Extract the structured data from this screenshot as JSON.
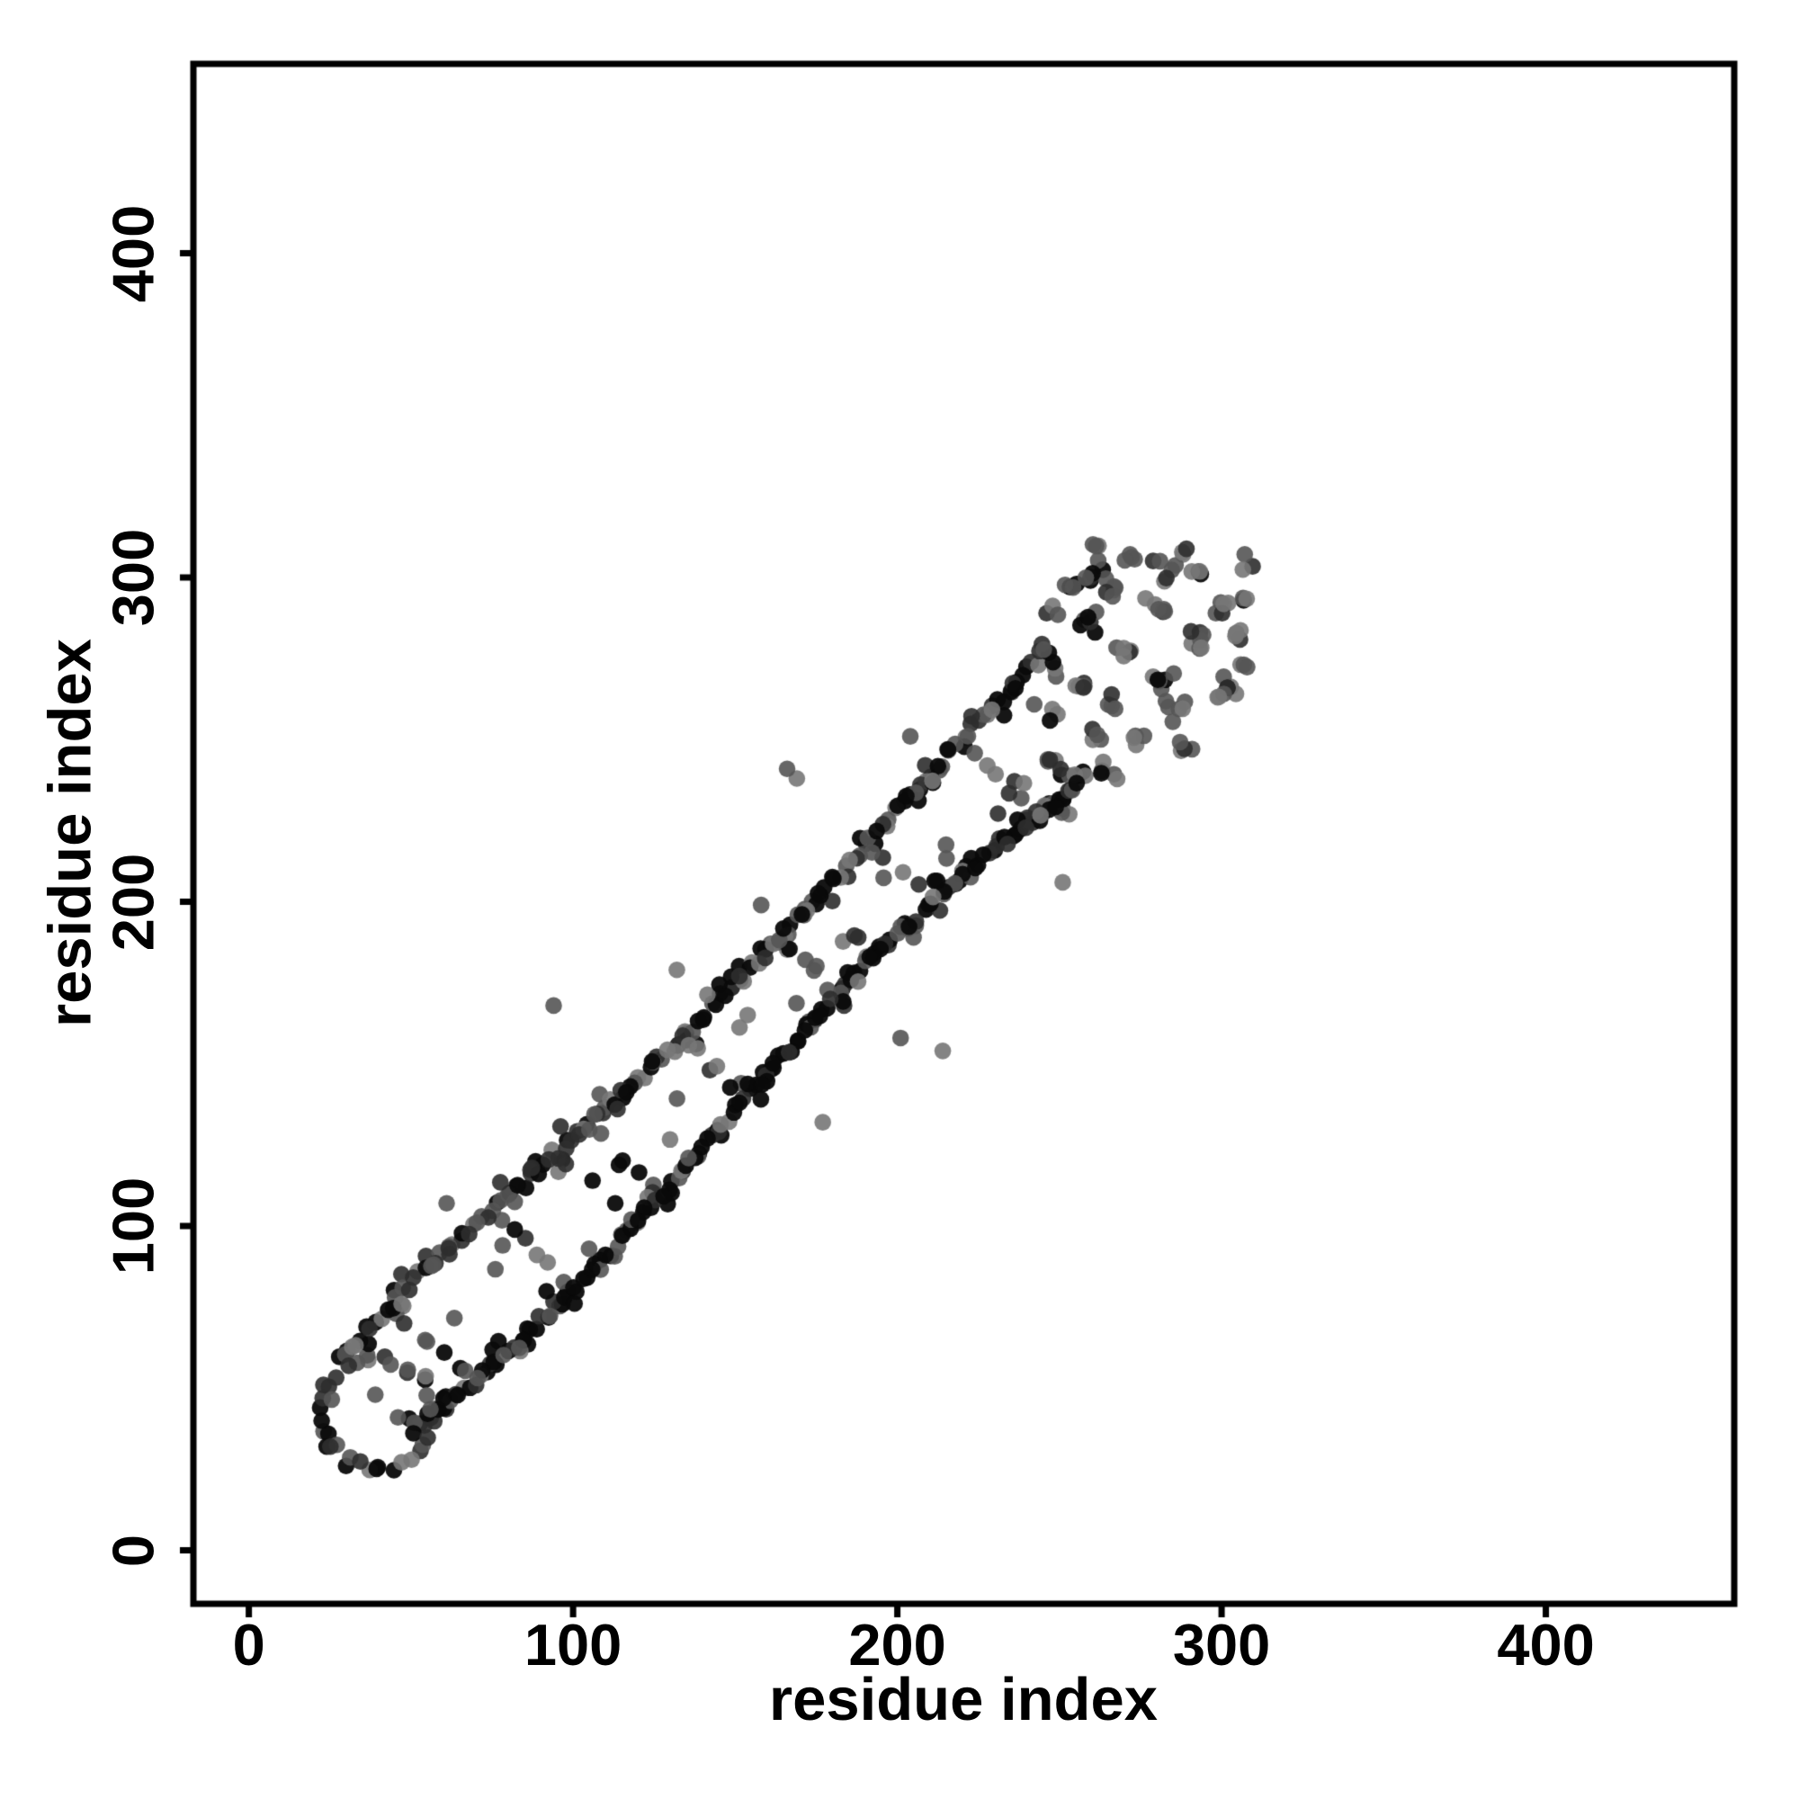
{
  "page": {
    "background": "#ffffff"
  },
  "chart_data": {
    "type": "scatter",
    "title": "",
    "xlabel": "residue index",
    "ylabel": "residue index",
    "xlim": [
      -17.1,
      458.1
    ],
    "ylim": [
      -16.5,
      458.4
    ],
    "x_ticks": [
      0,
      100,
      200,
      300,
      400
    ],
    "y_ticks": [
      0,
      100,
      200,
      300,
      400
    ],
    "grid": false,
    "legend_position": "none",
    "axis_color": "#000000",
    "background_color": "#ffffff",
    "point_radius_px": 9.3,
    "shades": [
      "#0a0a0a",
      "#2e2e2e",
      "#555555",
      "#777777"
    ],
    "shade_alphas": [
      0.95,
      0.9,
      0.9,
      0.9
    ],
    "pattern": {
      "seed": 20240516,
      "chains": [
        {
          "i_start": 50,
          "i_end": 259,
          "step": 1.3,
          "offset_base": -15,
          "offset_amp": 5,
          "offset_freq": 0.035,
          "offset_phase": 1.2,
          "jitter": 2.4,
          "double_p": 0.25,
          "double_spread": 5,
          "shade_weights": [
            0.55,
            0.22,
            0.13,
            0.1
          ]
        },
        {
          "i_start": 28,
          "i_end": 246,
          "step": 1.4,
          "offset_base": 28,
          "offset_amp": 3.5,
          "offset_freq": 0.03,
          "offset_phase": 0.4,
          "jitter": 2.6,
          "double_p": 0.3,
          "double_spread": 5,
          "shade_weights": [
            0.36,
            0.24,
            0.22,
            0.18
          ]
        }
      ],
      "rungs": {
        "centers_i": [
          57,
          86,
          115,
          144,
          173,
          202,
          231
        ],
        "center_offset": 6.5,
        "half_len": 10,
        "counts": [
          7,
          6,
          5,
          5,
          6,
          5,
          7
        ],
        "jitter": 4,
        "shade_weights": [
          0.1,
          0.2,
          0.42,
          0.28
        ]
      },
      "band_scatter": {
        "n": 22,
        "i_min": 55,
        "i_max": 250,
        "off_min": -8,
        "off_max": 22,
        "shade_weights": [
          0.08,
          0.18,
          0.44,
          0.3
        ]
      },
      "start_ring": {
        "cx": 40,
        "cy": 42,
        "r": 17,
        "n": 34,
        "r_jitter": 2.4,
        "shade_weights": [
          0.34,
          0.26,
          0.24,
          0.16
        ],
        "inner_points": [
          [
            39,
            48
          ],
          [
            46,
            41
          ]
        ]
      },
      "start_extras": [
        [
          24,
          32
        ],
        [
          30,
          26
        ],
        [
          22,
          44
        ],
        [
          23,
          51
        ]
      ],
      "blob_clusters": [
        [
          262,
          303,
          7,
          4
        ],
        [
          283,
          303,
          6,
          4
        ],
        [
          293,
          301,
          4,
          3
        ],
        [
          267,
          296,
          5,
          3
        ],
        [
          280,
          290,
          6,
          4
        ],
        [
          259,
          285,
          6,
          4
        ],
        [
          301,
          290,
          5,
          3
        ],
        [
          304,
          283,
          5,
          3
        ],
        [
          294,
          280,
          7,
          4
        ],
        [
          271,
          278,
          5,
          3
        ],
        [
          256,
          267,
          5,
          3
        ],
        [
          282,
          270,
          6,
          4
        ],
        [
          301,
          265,
          8,
          5
        ],
        [
          286,
          259,
          6,
          4
        ],
        [
          266,
          261,
          4,
          3
        ],
        [
          249,
          272,
          3,
          3
        ],
        [
          247,
          244,
          4,
          3
        ],
        [
          265,
          240,
          5,
          3
        ],
        [
          252,
          238,
          4,
          3
        ],
        [
          260,
          252,
          4,
          3
        ],
        [
          274,
          250,
          4,
          3
        ],
        [
          288,
          248,
          4,
          3
        ],
        [
          247,
          258,
          3,
          3
        ],
        [
          308,
          304,
          3,
          3
        ],
        [
          272,
          306,
          4,
          3
        ],
        [
          254,
          296,
          4,
          3
        ],
        [
          249,
          290,
          3,
          3
        ],
        [
          307,
          274,
          3,
          3
        ],
        [
          306,
          294,
          3,
          2
        ],
        [
          262,
          310,
          3,
          2
        ],
        [
          288,
          308,
          3,
          2
        ]
      ],
      "blob_shade_weights": [
        0.1,
        0.22,
        0.4,
        0.28
      ],
      "outliers_gray": [
        [
          132,
          179
        ],
        [
          177,
          132
        ],
        [
          158,
          199
        ],
        [
          204,
          251
        ],
        [
          251,
          206
        ],
        [
          205,
          189
        ],
        [
          118,
          102
        ],
        [
          253,
          227
        ],
        [
          61,
          107
        ],
        [
          201,
          158
        ],
        [
          214,
          154
        ],
        [
          166,
          241
        ],
        [
          169,
          238
        ],
        [
          94,
          168
        ]
      ],
      "outliers_dark": [
        [
          106,
          114
        ],
        [
          113,
          107
        ]
      ]
    }
  }
}
